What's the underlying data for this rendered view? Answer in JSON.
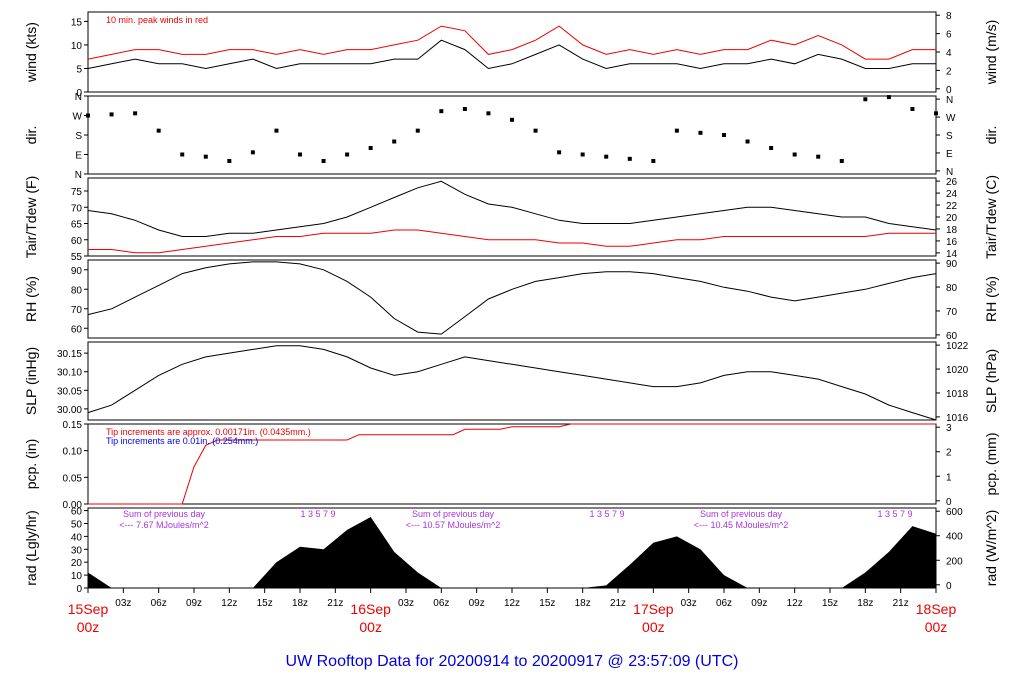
{
  "figure": {
    "footer_title": "UW Rooftop Data for 20200914  to  20200917 @ 23:57:09  (UTC)",
    "colors": {
      "footer": "#0000dd",
      "date": "#ee0000",
      "peak": "#ee0000",
      "sum": "#aa33dd",
      "dew": "#ee0000",
      "tip_red": "#ee0000",
      "tip_blue": "#0000ee"
    }
  },
  "time_axis": {
    "hour_ticks": [
      "03z",
      "06z",
      "09z",
      "12z",
      "15z",
      "18z",
      "21z",
      "03z",
      "06z",
      "09z",
      "12z",
      "15z",
      "18z",
      "21z",
      "03z",
      "06z",
      "09z",
      "12z",
      "15z",
      "18z",
      "21z"
    ],
    "date_labels": [
      {
        "date": "15Sep",
        "hour": "00z"
      },
      {
        "date": "16Sep",
        "hour": "00z"
      },
      {
        "date": "17Sep",
        "hour": "00z"
      },
      {
        "date": "18Sep",
        "hour": "00z"
      }
    ]
  },
  "chart_data": [
    {
      "panel": "wind",
      "type": "line",
      "ylabel_left": "wind (kts)",
      "ylabel_right": "wind (m/s)",
      "left_ticks": [
        "0",
        "5",
        "10",
        "15"
      ],
      "right_ticks": [
        "0",
        "2",
        "4",
        "6",
        "8"
      ],
      "ylim": [
        0,
        17
      ],
      "annotation": "10 min. peak winds in red",
      "x": [
        0,
        2,
        4,
        6,
        8,
        10,
        12,
        14,
        16,
        18,
        20,
        22,
        24,
        26,
        28,
        30,
        32,
        34,
        36,
        38,
        40,
        42,
        44,
        46,
        48,
        50,
        52,
        54,
        56,
        58,
        60,
        62,
        64,
        66,
        68,
        70,
        72
      ],
      "series": [
        {
          "values": [
            5,
            6,
            7,
            6,
            6,
            5,
            6,
            7,
            5,
            6,
            6,
            6,
            6,
            7,
            7,
            11,
            9,
            5,
            6,
            8,
            10,
            7,
            5,
            6,
            6,
            6,
            5,
            6,
            6,
            7,
            6,
            8,
            7,
            5,
            5,
            6,
            6
          ],
          "color": "#000000"
        },
        {
          "values": [
            7,
            8,
            9,
            9,
            8,
            8,
            9,
            9,
            8,
            9,
            8,
            9,
            9,
            10,
            11,
            14,
            13,
            8,
            9,
            11,
            14,
            10,
            8,
            9,
            8,
            9,
            8,
            9,
            9,
            11,
            10,
            12,
            10,
            7,
            7,
            9,
            9
          ],
          "color": "#ee0000"
        }
      ]
    },
    {
      "panel": "dir",
      "type": "scatter",
      "ylabel_left": "dir.",
      "ylabel_right": "dir.",
      "left_ticks": [
        "N",
        "E",
        "S",
        "W",
        "N"
      ],
      "right_ticks": [
        "N",
        "E",
        "S",
        "W",
        "N"
      ],
      "ylim": [
        0,
        360
      ],
      "x": [
        0,
        2,
        4,
        6,
        8,
        10,
        12,
        14,
        16,
        18,
        20,
        22,
        24,
        26,
        28,
        30,
        32,
        34,
        36,
        38,
        40,
        42,
        44,
        46,
        48,
        50,
        52,
        54,
        56,
        58,
        60,
        62,
        64,
        66,
        68,
        70,
        72
      ],
      "series": [
        {
          "values": [
            270,
            275,
            280,
            200,
            90,
            80,
            60,
            100,
            200,
            90,
            60,
            90,
            120,
            150,
            200,
            290,
            300,
            280,
            250,
            200,
            100,
            90,
            80,
            70,
            60,
            200,
            190,
            180,
            150,
            120,
            90,
            80,
            60,
            345,
            355,
            300,
            280
          ],
          "color": "#000000"
        }
      ]
    },
    {
      "panel": "temp",
      "type": "line",
      "ylabel_left": "Tair/Tdew (F)",
      "ylabel_right": "Tair/Tdew (C)",
      "left_ticks": [
        "55",
        "60",
        "65",
        "70",
        "75"
      ],
      "right_ticks": [
        "14",
        "16",
        "18",
        "20",
        "22",
        "24",
        "26"
      ],
      "ylim": [
        55,
        79
      ],
      "x": [
        0,
        2,
        4,
        6,
        8,
        10,
        12,
        14,
        16,
        18,
        20,
        22,
        24,
        26,
        28,
        30,
        32,
        34,
        36,
        38,
        40,
        42,
        44,
        46,
        48,
        50,
        52,
        54,
        56,
        58,
        60,
        62,
        64,
        66,
        68,
        70,
        72
      ],
      "series": [
        {
          "values": [
            69,
            68,
            66,
            63,
            61,
            61,
            62,
            62,
            63,
            64,
            65,
            67,
            70,
            73,
            76,
            78,
            74,
            71,
            70,
            68,
            66,
            65,
            65,
            65,
            66,
            67,
            68,
            69,
            70,
            70,
            69,
            68,
            67,
            67,
            65,
            64,
            63
          ],
          "color": "#000000"
        },
        {
          "values": [
            57,
            57,
            56,
            56,
            57,
            58,
            59,
            60,
            61,
            61,
            62,
            62,
            62,
            63,
            63,
            62,
            61,
            60,
            60,
            60,
            59,
            59,
            58,
            58,
            59,
            60,
            60,
            61,
            61,
            61,
            61,
            61,
            61,
            61,
            62,
            62,
            62
          ],
          "color": "#ee0000"
        }
      ]
    },
    {
      "panel": "rh",
      "type": "line",
      "ylabel_left": "RH (%)",
      "ylabel_right": "RH (%)",
      "left_ticks": [
        "60",
        "70",
        "80",
        "90"
      ],
      "right_ticks": [
        "60",
        "70",
        "80",
        "90"
      ],
      "ylim": [
        55,
        95
      ],
      "x": [
        0,
        2,
        4,
        6,
        8,
        10,
        12,
        14,
        16,
        18,
        20,
        22,
        24,
        26,
        28,
        30,
        32,
        34,
        36,
        38,
        40,
        42,
        44,
        46,
        48,
        50,
        52,
        54,
        56,
        58,
        60,
        62,
        64,
        66,
        68,
        70,
        72
      ],
      "series": [
        {
          "values": [
            67,
            70,
            76,
            82,
            88,
            91,
            93,
            94,
            94,
            93,
            90,
            84,
            76,
            65,
            58,
            57,
            66,
            75,
            80,
            84,
            86,
            88,
            89,
            89,
            88,
            86,
            84,
            81,
            79,
            76,
            74,
            76,
            78,
            80,
            83,
            86,
            88
          ],
          "color": "#000000"
        }
      ]
    },
    {
      "panel": "slp",
      "type": "line",
      "ylabel_left": "SLP (inHg)",
      "ylabel_right": "SLP (hPa)",
      "left_ticks": [
        "30.00",
        "30.05",
        "30.10",
        "30.15"
      ],
      "right_ticks": [
        "1016",
        "1018",
        "1020",
        "1022"
      ],
      "ylim": [
        29.97,
        30.18
      ],
      "x": [
        0,
        2,
        4,
        6,
        8,
        10,
        12,
        14,
        16,
        18,
        20,
        22,
        24,
        26,
        28,
        30,
        32,
        34,
        36,
        38,
        40,
        42,
        44,
        46,
        48,
        50,
        52,
        54,
        56,
        58,
        60,
        62,
        64,
        66,
        68,
        70,
        72
      ],
      "series": [
        {
          "values": [
            29.99,
            30.01,
            30.05,
            30.09,
            30.12,
            30.14,
            30.15,
            30.16,
            30.17,
            30.17,
            30.16,
            30.14,
            30.11,
            30.09,
            30.1,
            30.12,
            30.14,
            30.13,
            30.12,
            30.11,
            30.1,
            30.09,
            30.08,
            30.07,
            30.06,
            30.06,
            30.07,
            30.09,
            30.1,
            30.1,
            30.09,
            30.08,
            30.06,
            30.04,
            30.01,
            29.99,
            29.97
          ],
          "color": "#000000"
        }
      ]
    },
    {
      "panel": "pcp",
      "type": "line",
      "ylabel_left": "pcp. (in)",
      "ylabel_right": "pcp. (mm)",
      "left_ticks": [
        "0.00",
        "0.05",
        "0.10",
        "0.15"
      ],
      "right_ticks": [
        "0",
        "1",
        "2",
        "3"
      ],
      "ylim": [
        0,
        0.15
      ],
      "note_red": "Tip increments are approx. 0.00171in. (0.0435mm.)",
      "note_blue": "Tip increments are 0.01in. (0.254mm.)",
      "x": [
        0,
        8,
        9,
        10,
        11,
        22,
        23,
        31,
        32,
        35,
        36,
        40,
        41,
        72
      ],
      "series": [
        {
          "values": [
            0,
            0,
            0.07,
            0.11,
            0.12,
            0.12,
            0.13,
            0.13,
            0.14,
            0.14,
            0.145,
            0.145,
            0.15,
            0.15
          ],
          "color": "#ee0000"
        }
      ]
    },
    {
      "panel": "rad",
      "type": "area",
      "ylabel_left": "rad (Lgly/hr)",
      "ylabel_right": "rad (W/m^2)",
      "left_ticks": [
        "0",
        "10",
        "20",
        "30",
        "40",
        "50",
        "60"
      ],
      "right_ticks": [
        "0",
        "200",
        "400",
        "600"
      ],
      "ylim": [
        0,
        62
      ],
      "sum_labels": [
        {
          "line1": "Sum of previous day",
          "line2": "<--- 7.67 MJoules/m^2",
          "hours": "1  3  5  7  9"
        },
        {
          "line1": "Sum of previous day",
          "line2": "<--- 10.57 MJoules/m^2",
          "hours": "1  3  5  7  9"
        },
        {
          "line1": "Sum of previous day",
          "line2": "<--- 10.45 MJoules/m^2",
          "hours": "1  3  5  7  9"
        }
      ],
      "x": [
        0,
        2,
        4,
        6,
        8,
        10,
        12,
        14,
        16,
        18,
        20,
        22,
        24,
        26,
        28,
        30,
        32,
        34,
        36,
        38,
        40,
        42,
        44,
        46,
        48,
        50,
        52,
        54,
        56,
        58,
        60,
        62,
        64,
        66,
        68,
        70,
        72
      ],
      "series": [
        {
          "values": [
            12,
            0,
            0,
            0,
            0,
            0,
            0,
            0,
            20,
            32,
            30,
            45,
            55,
            28,
            12,
            0,
            0,
            0,
            0,
            0,
            0,
            0,
            2,
            18,
            35,
            40,
            30,
            10,
            0,
            0,
            0,
            0,
            0,
            12,
            28,
            48,
            42
          ],
          "color": "#000000"
        }
      ]
    }
  ]
}
